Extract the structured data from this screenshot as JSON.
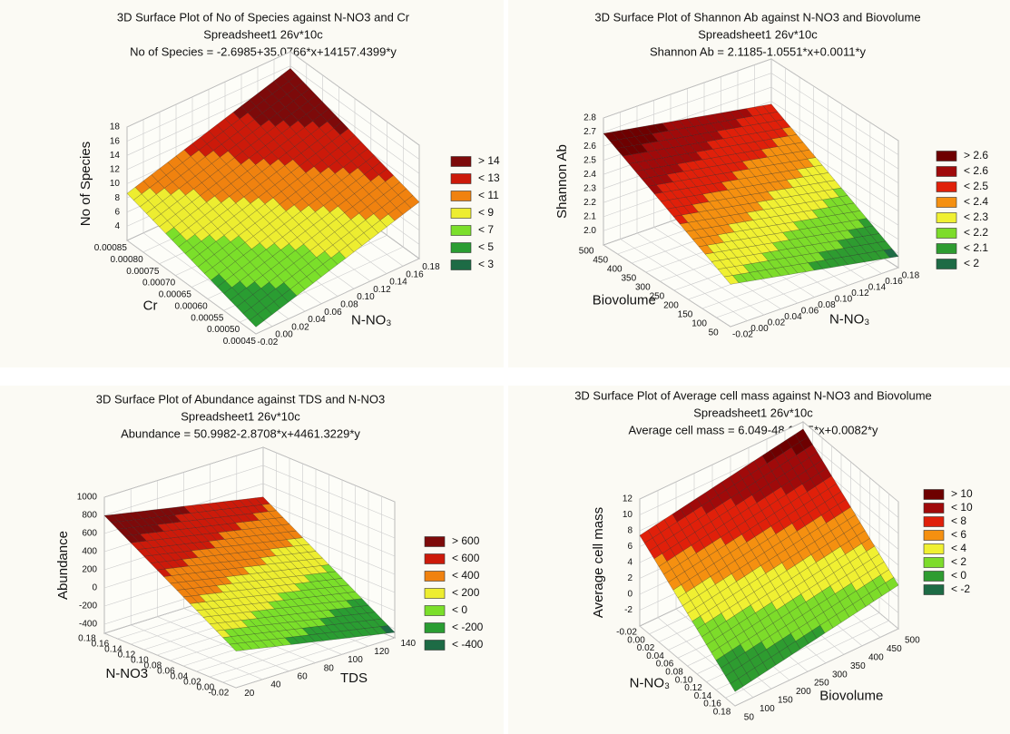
{
  "chart_data": [
    {
      "type": "surface",
      "title": "3D Surface Plot of No of Species against N-NO3 and Cr",
      "subtitle": "Spreadsheet1 26v*10c",
      "equation": "No of Species = -2.6985+35.0766*x+14157.4399*y",
      "xlabel": "N-NO₃",
      "ylabel": "Cr",
      "zlabel": "No of Species",
      "x": [
        -0.02,
        0.18
      ],
      "y": [
        0.00045,
        0.00085
      ],
      "z": [
        [
          2.97,
          8.63
        ],
        [
          9.98,
          15.64
        ]
      ],
      "xlim": [
        -0.02,
        0.18
      ],
      "ylim": [
        0.00045,
        0.00085
      ],
      "zlim": [
        2,
        18
      ],
      "xticks": [
        -0.02,
        {
          "value": 0,
          "label": "0.00"
        },
        0.02,
        0.04,
        0.06,
        0.08,
        {
          "value": 0.1,
          "label": "0.10"
        },
        0.12,
        0.14,
        0.16,
        0.18
      ],
      "yticks": [
        0.00045,
        {
          "value": 0.0005,
          "label": "0.00050"
        },
        0.00055,
        {
          "value": 0.0006,
          "label": "0.00060"
        },
        0.00065,
        {
          "value": 0.0007,
          "label": "0.00070"
        },
        0.00075,
        {
          "value": 0.0008,
          "label": "0.00080"
        },
        0.00085
      ],
      "zticks": [
        4,
        6,
        8,
        10,
        12,
        14,
        16,
        18
      ],
      "grid": true,
      "legend": [
        {
          "value": 14,
          "label": "> 14",
          "color": "#7d0a0a"
        },
        {
          "value": 13,
          "label": "< 13",
          "color": "#cc1a0a"
        },
        {
          "value": 11,
          "label": "< 11",
          "color": "#f0820f"
        },
        {
          "value": 9,
          "label": "< 9",
          "color": "#eded30"
        },
        {
          "value": 7,
          "label": "< 7",
          "color": "#7bdf2a"
        },
        {
          "value": 5,
          "label": "< 5",
          "color": "#2a9d32"
        },
        {
          "value": 3,
          "label": "< 3",
          "color": "#1d6b45"
        }
      ]
    },
    {
      "type": "surface",
      "title": "3D Surface Plot of Shannon Ab against N-NO3 and Biovolume",
      "subtitle": "Spreadsheet1 26v*10c",
      "equation": "Shannon Ab = 2.1185-1.0551*x+0.0011*y",
      "xlabel": "N-NO₃",
      "ylabel": "Biovolume",
      "zlabel": "Shannon Ab",
      "x": [
        -0.02,
        0.18
      ],
      "y": [
        50,
        500
      ],
      "z": [
        [
          2.2,
          2.69
        ],
        [
          1.98,
          2.48
        ]
      ],
      "xlim": [
        -0.02,
        0.18
      ],
      "ylim": [
        50,
        500
      ],
      "zlim": [
        1.9,
        2.8
      ],
      "xticks": [
        -0.02,
        {
          "value": 0,
          "label": "0.00"
        },
        0.02,
        0.04,
        0.06,
        0.08,
        {
          "value": 0.1,
          "label": "0.10"
        },
        0.12,
        0.14,
        0.16,
        0.18
      ],
      "yticks": [
        50,
        100,
        150,
        200,
        250,
        300,
        350,
        400,
        450,
        500
      ],
      "zticks": [
        {
          "value": 2,
          "label": "2.0"
        },
        2.1,
        2.2,
        2.3,
        2.4,
        2.5,
        2.6,
        2.7,
        2.8
      ],
      "grid": true,
      "legend": [
        {
          "value": 2.6,
          "label": "> 2.6",
          "color": "#6e0000"
        },
        {
          "value": 2.6,
          "label": "< 2.6",
          "color": "#a00a0a"
        },
        {
          "value": 2.5,
          "label": "< 2.5",
          "color": "#e0200a"
        },
        {
          "value": 2.4,
          "label": "< 2.4",
          "color": "#f59010"
        },
        {
          "value": 2.3,
          "label": "< 2.3",
          "color": "#f0f032"
        },
        {
          "value": 2.2,
          "label": "< 2.2",
          "color": "#7ddc2a"
        },
        {
          "value": 2.1,
          "label": "< 2.1",
          "color": "#2e9c30"
        },
        {
          "value": 2,
          "label": "< 2",
          "color": "#1d6b45"
        }
      ]
    },
    {
      "type": "surface",
      "title": "3D Surface Plot of Abundance against TDS and N-NO3",
      "subtitle": "Spreadsheet1 26v*10c",
      "equation": "Abundance = 50.9982-2.8708*x+4461.3229*y",
      "xlabel": "TDS",
      "ylabel": "N-NO3",
      "zlabel": "Abundance",
      "x": [
        20,
        140
      ],
      "y": [
        -0.02,
        0.18
      ],
      "z": [
        [
          -96,
          797
        ],
        [
          -440,
          452
        ]
      ],
      "xlim": [
        20,
        140
      ],
      "ylim": [
        -0.02,
        0.18
      ],
      "zlim": [
        -500,
        1000
      ],
      "xticks": [
        20,
        40,
        60,
        80,
        100,
        120,
        140
      ],
      "yticks": [
        -0.02,
        {
          "value": 0,
          "label": "0.00"
        },
        0.02,
        0.04,
        0.06,
        0.08,
        {
          "value": 0.1,
          "label": "0.10"
        },
        0.12,
        0.14,
        0.16,
        0.18
      ],
      "zticks": [
        -400,
        -200,
        0,
        200,
        400,
        600,
        800,
        1000
      ],
      "grid": true,
      "legend": [
        {
          "value": 600,
          "label": "> 600",
          "color": "#7d0a0a"
        },
        {
          "value": 600,
          "label": "< 600",
          "color": "#cc1a0a"
        },
        {
          "value": 400,
          "label": "< 400",
          "color": "#f0820f"
        },
        {
          "value": 200,
          "label": "< 200",
          "color": "#eded30"
        },
        {
          "value": 0,
          "label": "< 0",
          "color": "#7bdf2a"
        },
        {
          "value": -200,
          "label": "< -200",
          "color": "#2a9d32"
        },
        {
          "value": -400,
          "label": "< -400",
          "color": "#1d6b45"
        }
      ]
    },
    {
      "type": "surface",
      "title": "3D Surface Plot of Average cell mass against N-NO3 and Biovolume",
      "subtitle": "Spreadsheet1 26v*10c",
      "equation": "Average cell mass = 6.049-48.1755*x+0.0082*y",
      "xlabel": "N-NO₃",
      "ylabel": "Biovolume",
      "zlabel": "Average cell mass",
      "x": [
        -0.02,
        0.18
      ],
      "y": [
        50,
        500
      ],
      "z": [
        [
          7.42,
          11.11
        ],
        [
          -2.21,
          1.48
        ]
      ],
      "xlim": [
        -0.02,
        0.18
      ],
      "ylim": [
        50,
        500
      ],
      "zlim": [
        -4,
        12
      ],
      "xticks": [
        -0.02,
        {
          "value": 0,
          "label": "0.00"
        },
        0.02,
        0.04,
        0.06,
        0.08,
        {
          "value": 0.1,
          "label": "0.10"
        },
        0.12,
        0.14,
        0.16,
        0.18
      ],
      "yticks": [
        50,
        100,
        150,
        200,
        250,
        300,
        350,
        400,
        450,
        500
      ],
      "zticks": [
        -2,
        0,
        2,
        4,
        6,
        8,
        10,
        12
      ],
      "grid": true,
      "legend": [
        {
          "value": 10,
          "label": "> 10",
          "color": "#6e0000"
        },
        {
          "value": 10,
          "label": "< 10",
          "color": "#a00a0a"
        },
        {
          "value": 8,
          "label": "< 8",
          "color": "#e0200a"
        },
        {
          "value": 6,
          "label": "< 6",
          "color": "#f59010"
        },
        {
          "value": 4,
          "label": "< 4",
          "color": "#f0f032"
        },
        {
          "value": 2,
          "label": "< 2",
          "color": "#7ddc2a"
        },
        {
          "value": 0,
          "label": "< 0",
          "color": "#2e9c30"
        },
        {
          "value": -2,
          "label": "< -2",
          "color": "#1d6b45"
        }
      ]
    }
  ]
}
